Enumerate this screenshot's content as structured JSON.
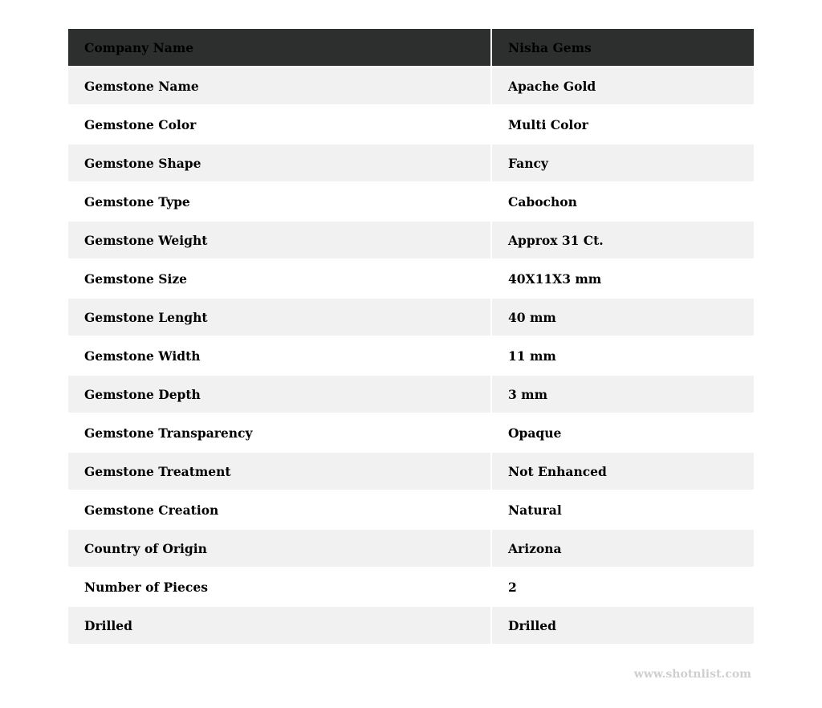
{
  "header": {
    "label": "Company Name",
    "value": "Nisha Gems"
  },
  "rows": [
    {
      "label": "Gemstone Name",
      "value": "Apache Gold"
    },
    {
      "label": "Gemstone Color",
      "value": "Multi Color"
    },
    {
      "label": "Gemstone Shape",
      "value": "Fancy"
    },
    {
      "label": "Gemstone Type",
      "value": "Cabochon"
    },
    {
      "label": "Gemstone Weight",
      "value": "Approx 31 Ct."
    },
    {
      "label": "Gemstone Size",
      "value": "40X11X3 mm"
    },
    {
      "label": "Gemstone Lenght",
      "value": "40 mm"
    },
    {
      "label": "Gemstone Width",
      "value": "11 mm"
    },
    {
      "label": "Gemstone Depth",
      "value": "3 mm"
    },
    {
      "label": "Gemstone Transparency",
      "value": "Opaque"
    },
    {
      "label": "Gemstone Treatment",
      "value": "Not Enhanced"
    },
    {
      "label": "Gemstone Creation",
      "value": "Natural"
    },
    {
      "label": "Country of Origin",
      "value": "Arizona"
    },
    {
      "label": "Number of Pieces",
      "value": "2"
    },
    {
      "label": "Drilled",
      "value": "Drilled"
    }
  ],
  "footer": {
    "watermark": "www.shotnlist.com"
  },
  "colors": {
    "header_bg": "#2d2f2e",
    "stripe_bg": "#f1f1f1",
    "watermark": "#cfcfcf"
  }
}
